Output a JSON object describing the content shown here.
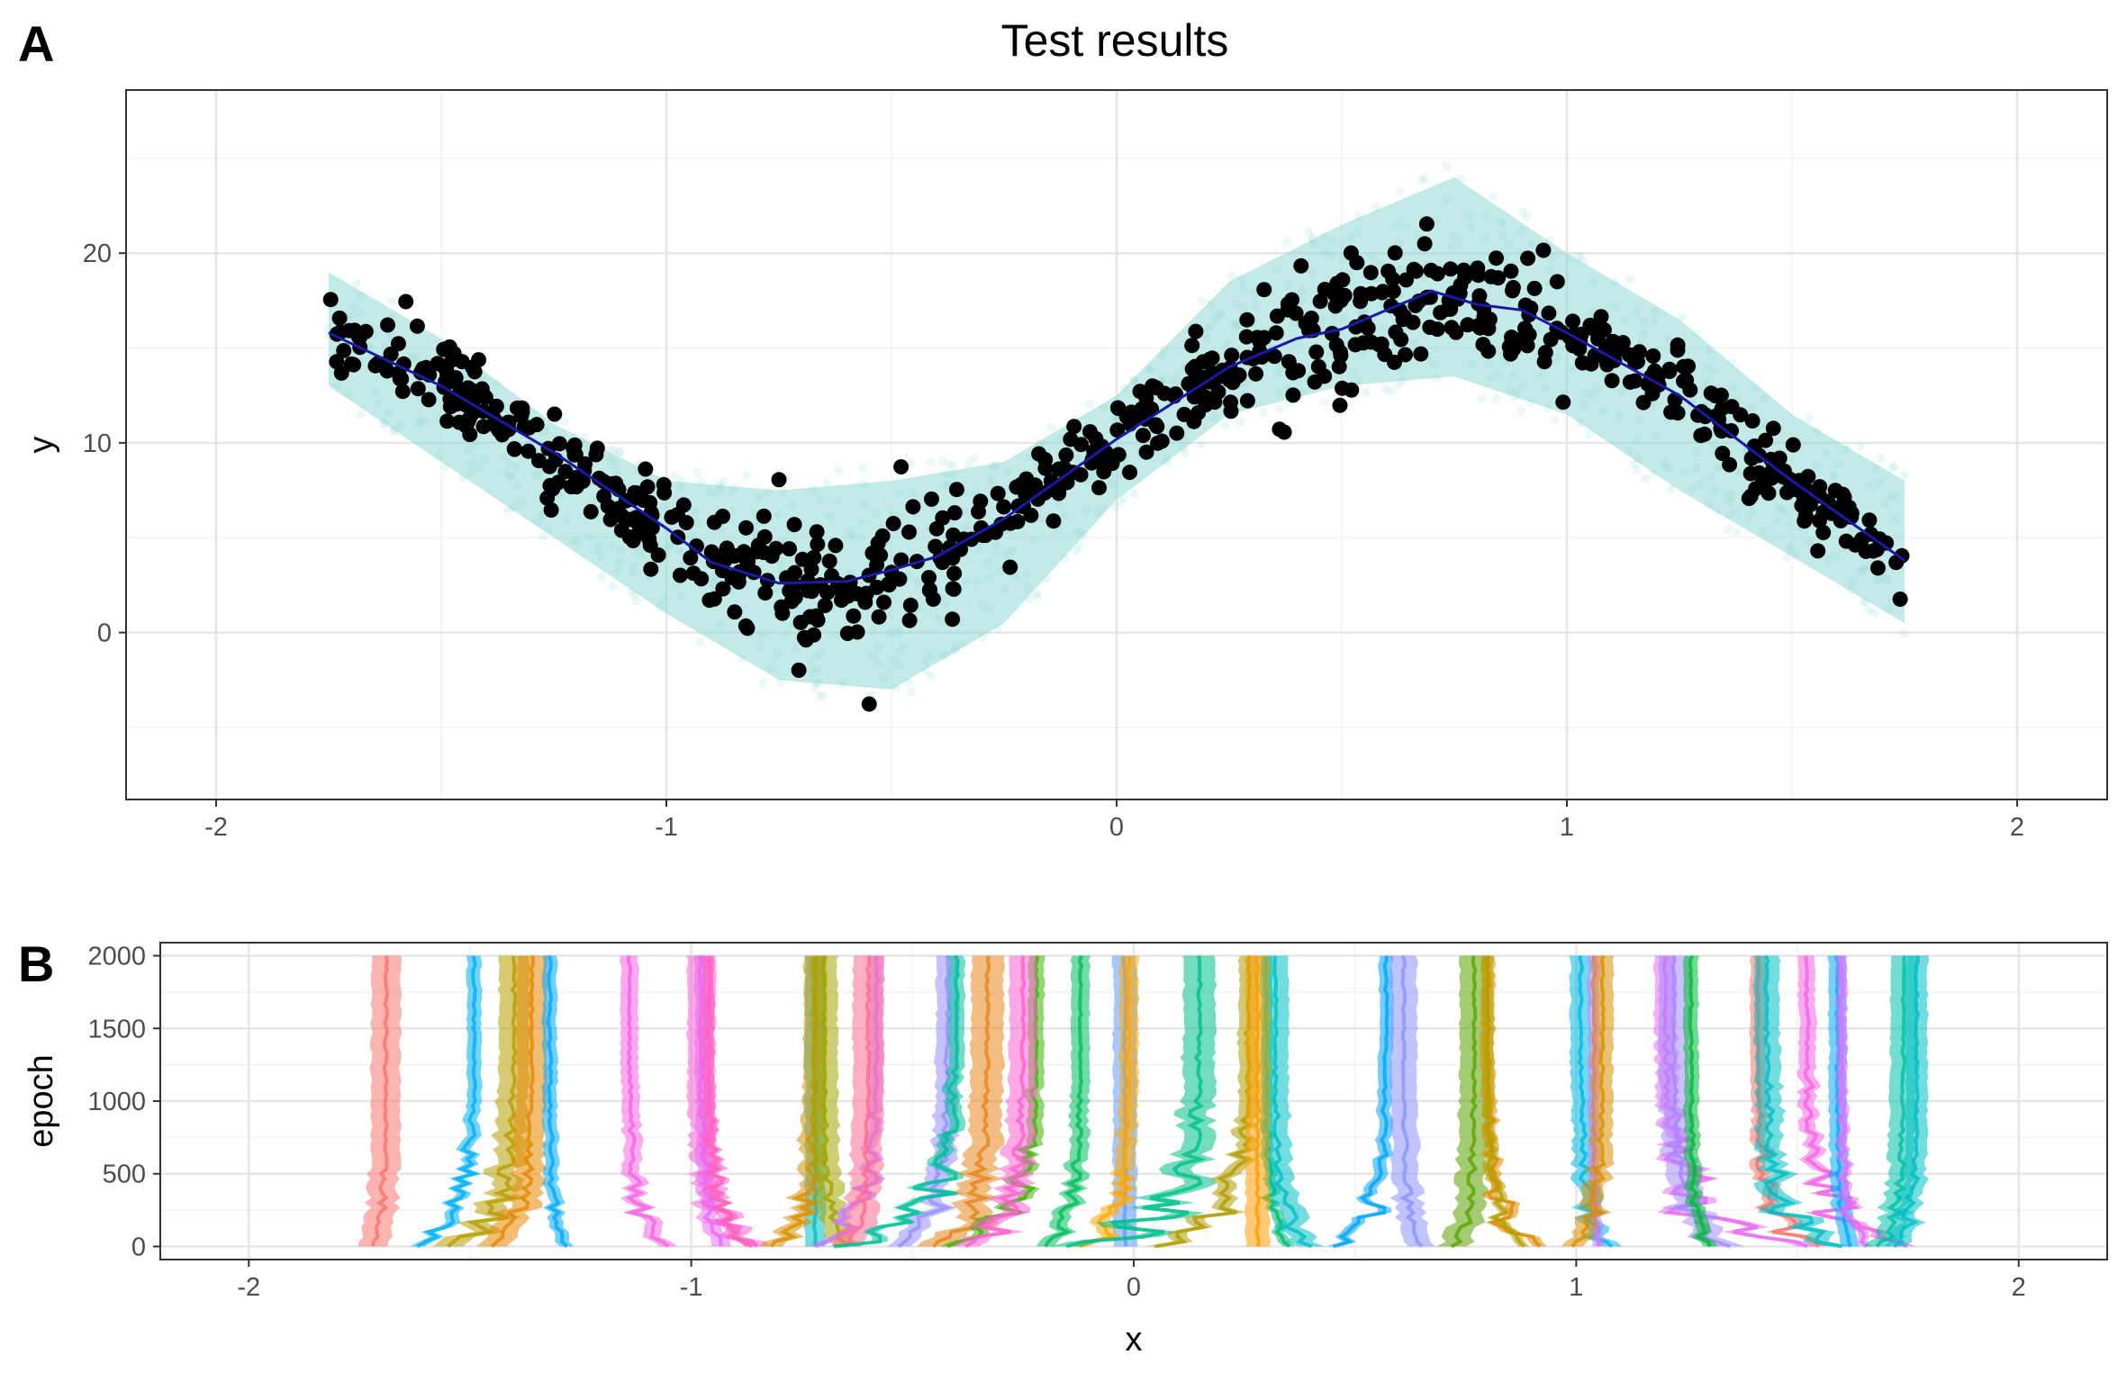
{
  "chart_data": [
    {
      "panel_label": "A",
      "type": "scatter",
      "title": "Test results",
      "xlabel": "",
      "ylabel": "y",
      "xlim": [
        -2.2,
        2.2
      ],
      "ylim": [
        -8.8,
        28.6
      ],
      "x_ticks": [
        "-2",
        "-1",
        "0",
        "1",
        "2"
      ],
      "y_ticks": [
        "0",
        "10",
        "20"
      ],
      "grid": true,
      "colors": {
        "band": "#8fd9d6",
        "points": "#000000",
        "mean_line": "#1a1aa6"
      },
      "series": [
        {
          "kind": "predictive-band",
          "x": [
            -1.75,
            -1.5,
            -1.25,
            -1.0,
            -0.75,
            -0.5,
            -0.25,
            0.0,
            0.25,
            0.5,
            0.75,
            1.0,
            1.25,
            1.5,
            1.75
          ],
          "lower": [
            13.0,
            9.0,
            5.0,
            1.0,
            -2.5,
            -3.0,
            0.5,
            7.0,
            11.5,
            13.0,
            13.5,
            11.5,
            7.5,
            4.0,
            0.5
          ],
          "upper": [
            19.0,
            15.5,
            11.0,
            8.0,
            7.5,
            8.0,
            9.0,
            12.5,
            18.5,
            21.5,
            24.0,
            20.0,
            16.5,
            11.5,
            8.0
          ]
        },
        {
          "kind": "mean-line",
          "x": [
            -1.75,
            -1.5,
            -1.25,
            -1.0,
            -0.9,
            -0.75,
            -0.6,
            -0.5,
            -0.4,
            -0.25,
            0.0,
            0.25,
            0.4,
            0.5,
            0.6,
            0.7,
            0.8,
            0.9,
            1.0,
            1.25,
            1.5,
            1.75
          ],
          "y": [
            15.8,
            13.0,
            9.5,
            5.5,
            3.7,
            2.6,
            2.7,
            3.3,
            4.0,
            6.0,
            10.2,
            14.0,
            15.5,
            16.0,
            17.0,
            18.0,
            17.3,
            17.0,
            15.8,
            12.5,
            8.0,
            3.8
          ]
        },
        {
          "kind": "observations",
          "n": 700,
          "x_range": [
            -1.75,
            1.75
          ],
          "noise_sd": 1.3
        }
      ]
    },
    {
      "panel_label": "B",
      "type": "line",
      "title": "",
      "xlabel": "x",
      "ylabel": "epoch",
      "xlim": [
        -2.2,
        2.2
      ],
      "ylim": [
        -90,
        2090
      ],
      "x_ticks": [
        "-2",
        "-1",
        "0",
        "1",
        "2"
      ],
      "y_ticks": [
        "0",
        "500",
        "1000",
        "1500",
        "2000"
      ],
      "grid": true,
      "traces": [
        {
          "x_final": -1.69,
          "x_start": -1.72,
          "color": "#f8766d"
        },
        {
          "x_final": -1.49,
          "x_start": -1.62,
          "color": "#00b0f6"
        },
        {
          "x_final": -1.4,
          "x_start": -1.55,
          "color": "#b79f00"
        },
        {
          "x_final": -1.36,
          "x_start": -1.45,
          "color": "#e58700"
        },
        {
          "x_final": -1.32,
          "x_start": -1.28,
          "color": "#00a9ff"
        },
        {
          "x_final": -1.14,
          "x_start": -1.05,
          "color": "#f564e3"
        },
        {
          "x_final": -0.98,
          "x_start": -0.85,
          "color": "#fc61d5"
        },
        {
          "x_final": -0.97,
          "x_start": -0.93,
          "color": "#e76bf3"
        },
        {
          "x_final": -0.96,
          "x_start": -0.86,
          "color": "#ff62bc"
        },
        {
          "x_final": -0.72,
          "x_start": -0.72,
          "color": "#00bfc4"
        },
        {
          "x_final": -0.72,
          "x_start": -0.82,
          "color": "#d89000"
        },
        {
          "x_final": -0.7,
          "x_start": -0.65,
          "color": "#a3a500"
        },
        {
          "x_final": -0.58,
          "x_start": -0.72,
          "color": "#c77cff"
        },
        {
          "x_final": -0.6,
          "x_start": -0.65,
          "color": "#ff6c91"
        },
        {
          "x_final": -0.42,
          "x_start": -0.53,
          "color": "#9590ff"
        },
        {
          "x_final": -0.4,
          "x_start": -0.68,
          "color": "#00c19a"
        },
        {
          "x_final": -0.33,
          "x_start": -0.45,
          "color": "#e7861b"
        },
        {
          "x_final": -0.22,
          "x_start": -0.42,
          "color": "#39b600"
        },
        {
          "x_final": -0.25,
          "x_start": -0.38,
          "color": "#fd61d1"
        },
        {
          "x_final": -0.12,
          "x_start": -0.2,
          "color": "#00bd5c"
        },
        {
          "x_final": -0.02,
          "x_start": -0.02,
          "color": "#619cff"
        },
        {
          "x_final": -0.01,
          "x_start": -0.12,
          "color": "#ffa800"
        },
        {
          "x_final": 0.15,
          "x_start": -0.15,
          "color": "#00c08b"
        },
        {
          "x_final": 0.26,
          "x_start": 0.05,
          "color": "#ae9d00"
        },
        {
          "x_final": 0.3,
          "x_start": 0.35,
          "color": "#00be70"
        },
        {
          "x_final": 0.32,
          "x_start": 0.4,
          "color": "#00bfc4"
        },
        {
          "x_final": 0.28,
          "x_start": 0.28,
          "color": "#ff9e00"
        },
        {
          "x_final": 0.57,
          "x_start": 0.45,
          "color": "#00a5ff"
        },
        {
          "x_final": 0.61,
          "x_start": 0.65,
          "color": "#8b93ff"
        },
        {
          "x_final": 0.77,
          "x_start": 0.72,
          "color": "#5ba300"
        },
        {
          "x_final": 0.8,
          "x_start": 0.92,
          "color": "#e08b00"
        },
        {
          "x_final": 0.8,
          "x_start": 0.88,
          "color": "#b79f00"
        },
        {
          "x_final": 1.01,
          "x_start": 1.08,
          "color": "#00b9e3"
        },
        {
          "x_final": 1.04,
          "x_start": 1.05,
          "color": "#c77cff"
        },
        {
          "x_final": 1.06,
          "x_start": 0.99,
          "color": "#d89000"
        },
        {
          "x_final": 1.2,
          "x_start": 1.52,
          "color": "#e76bf3"
        },
        {
          "x_final": 1.22,
          "x_start": 1.35,
          "color": "#a58aff"
        },
        {
          "x_final": 1.26,
          "x_start": 1.3,
          "color": "#00ba38"
        },
        {
          "x_final": 1.41,
          "x_start": 1.55,
          "color": "#f8766d"
        },
        {
          "x_final": 1.43,
          "x_start": 1.6,
          "color": "#00bfc4"
        },
        {
          "x_final": 1.52,
          "x_start": 1.75,
          "color": "#f564e3"
        },
        {
          "x_final": 1.59,
          "x_start": 1.62,
          "color": "#00a9ff"
        },
        {
          "x_final": 1.6,
          "x_start": 1.66,
          "color": "#dc71fa"
        },
        {
          "x_final": 1.74,
          "x_start": 1.68,
          "color": "#00c1a7"
        },
        {
          "x_final": 1.77,
          "x_start": 1.72,
          "color": "#00bfc4"
        }
      ]
    }
  ]
}
